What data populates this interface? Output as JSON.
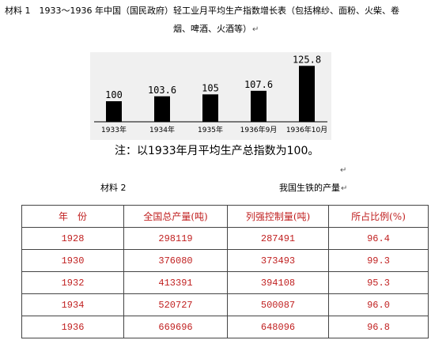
{
  "material1": {
    "line1": "材料 1　1933～1936 年中国（国民政府）轻工业月平均生产指数增长表（包括棉纱、面粉、火柴、卷",
    "line2": "烟、啤酒、火酒等）",
    "return_mark": "↵"
  },
  "chart_data": {
    "type": "bar",
    "categories": [
      "1933年",
      "1934年",
      "1935年",
      "1936年9月",
      "1936年10月"
    ],
    "values": [
      100,
      103.6,
      105,
      107.6,
      125.8
    ],
    "value_labels": [
      "100",
      "103.6",
      "105",
      "107.6",
      "125.8"
    ],
    "ylim": [
      85,
      130
    ],
    "note": "注：以1933年月平均生产总指数为100。",
    "colors": {
      "bar": "#000000",
      "background": "#f0f0f0"
    }
  },
  "material2": {
    "label": "材料 2",
    "title": "我国生铁的产量"
  },
  "table": {
    "headers": [
      "年　份",
      "全国总产量(吨)",
      "列强控制量(吨)",
      "所占比例(%)"
    ],
    "rows": [
      [
        "1928",
        "298119",
        "287491",
        "96.4"
      ],
      [
        "1930",
        "376080",
        "373493",
        "99.3"
      ],
      [
        "1932",
        "413391",
        "394108",
        "95.3"
      ],
      [
        "1934",
        "520727",
        "500087",
        "96.0"
      ],
      [
        "1936",
        "669696",
        "648096",
        "96.8"
      ]
    ],
    "text_color": "#c02020"
  }
}
